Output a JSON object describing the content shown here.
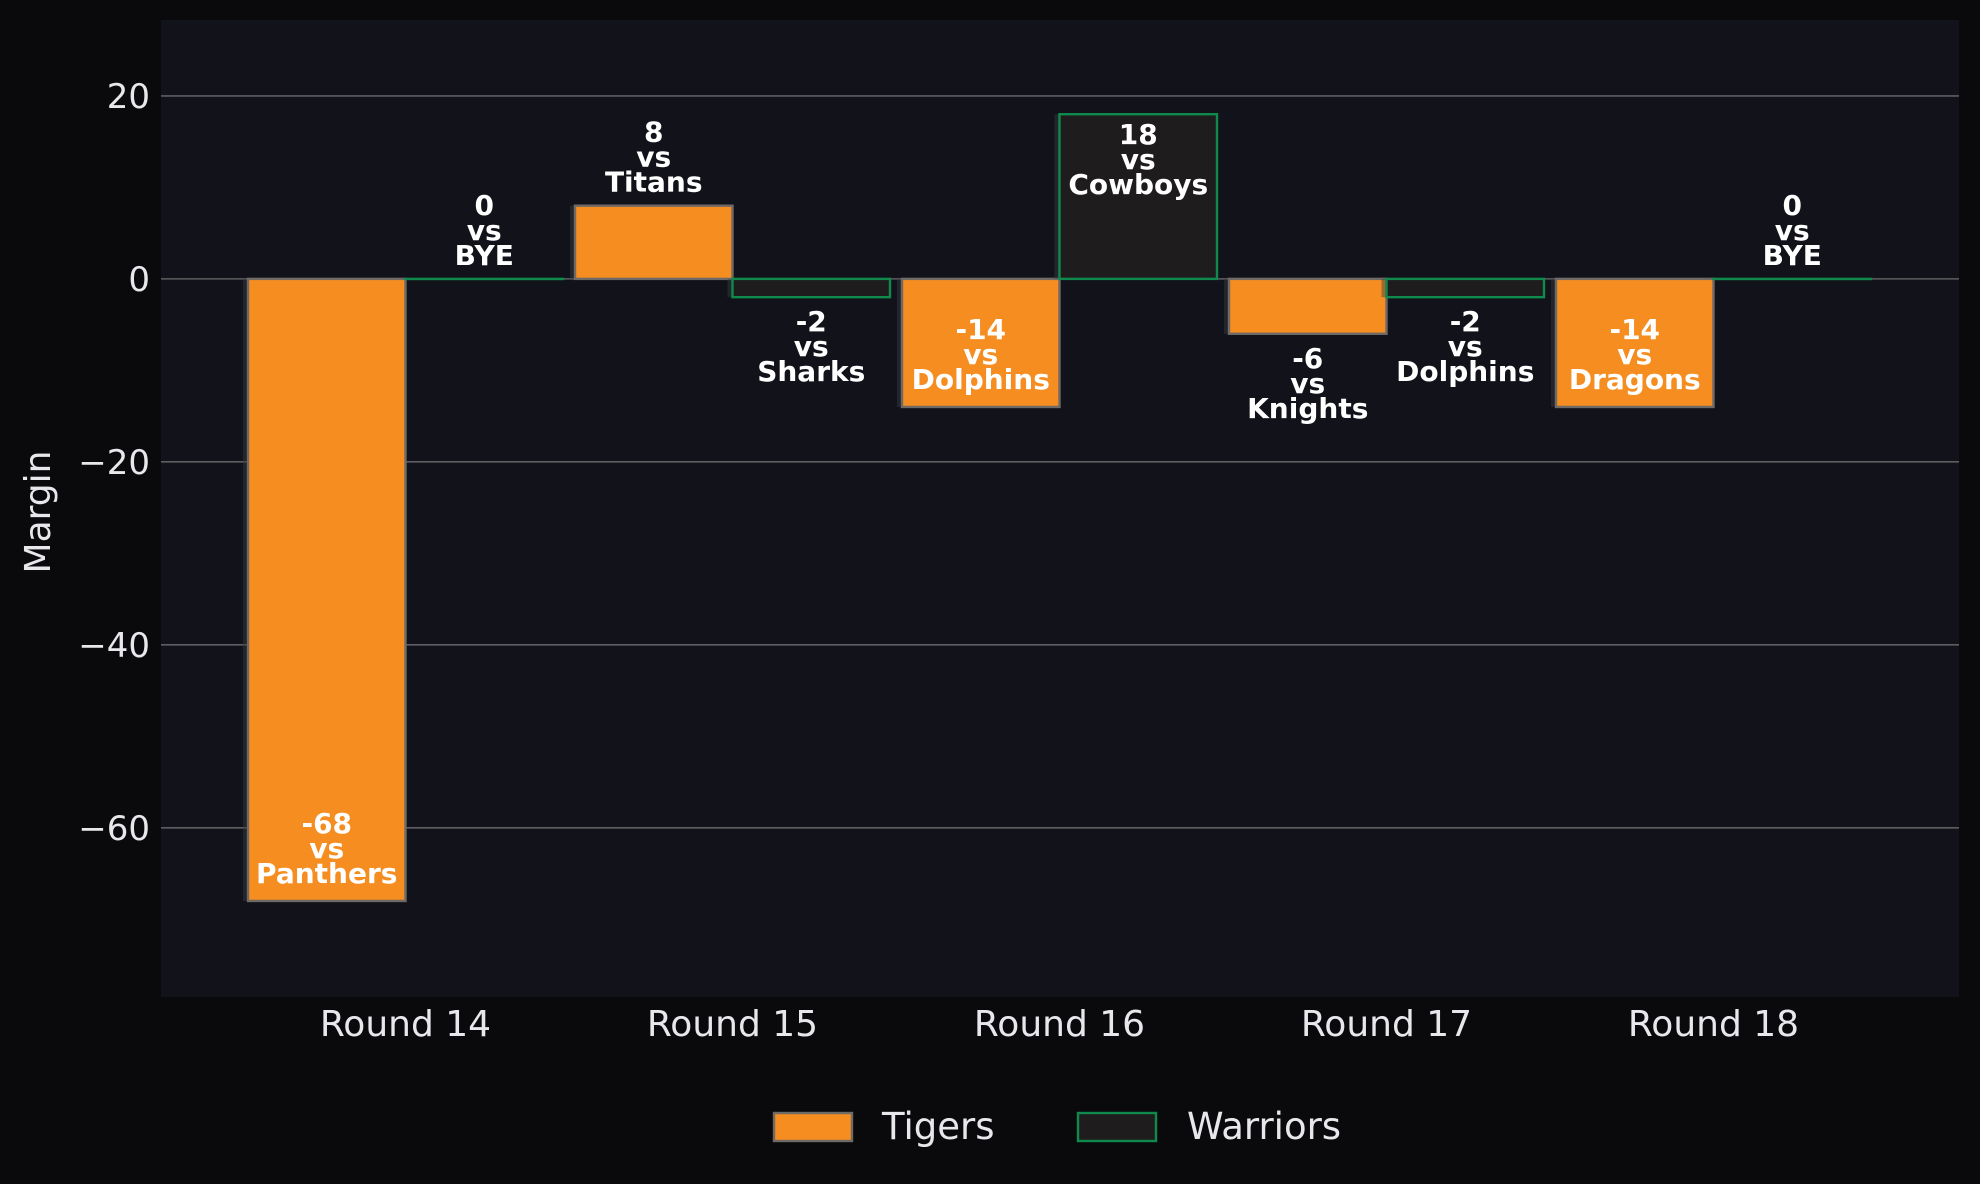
{
  "chart_data": {
    "type": "bar",
    "ylabel": "Margin",
    "xlabel": "",
    "ylim": [
      -78.5,
      28.3
    ],
    "yticks": [
      20,
      0,
      -20,
      -40,
      -60
    ],
    "ytick_labels": [
      "20",
      "0",
      "−20",
      "−40",
      "−60"
    ],
    "grid": "horizontal",
    "legend_position": "bottom-center",
    "categories": [
      "Round 14",
      "Round 15",
      "Round 16",
      "Round 17",
      "Round 18"
    ],
    "series": [
      {
        "name": "Tigers",
        "color": "#f58d20",
        "values": [
          -68,
          8,
          -14,
          -6,
          -14
        ],
        "opponents": [
          "Panthers",
          "Titans",
          "Dolphins",
          "Knights",
          "Dragons"
        ]
      },
      {
        "name": "Warriors",
        "color": "#1f1c1e",
        "edge_color": "#0f8a4c",
        "values": [
          0,
          -2,
          18,
          -2,
          0
        ],
        "opponents": [
          "BYE",
          "Sharks",
          "Cowboys",
          "Dolphins",
          "BYE"
        ]
      }
    ],
    "label_joiner": "vs"
  },
  "colors": {
    "page_background": "#0a0a0d",
    "plot_background": "#12131a",
    "grid": "#5e5e62",
    "text": "#e8e8ec",
    "label_text": "#ffffff"
  }
}
